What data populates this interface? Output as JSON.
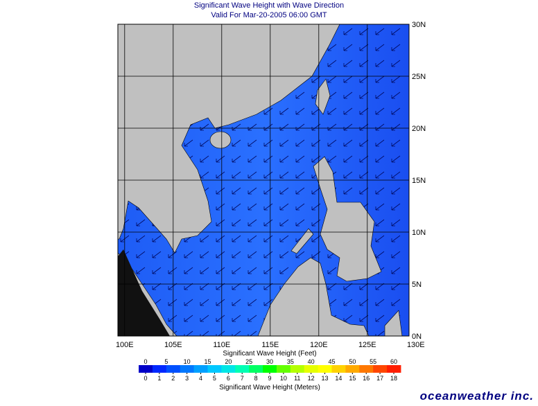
{
  "title": "Significant Wave Height with Wave Direction",
  "subtitle": "Valid For Mar-20-2005 06:00 GMT",
  "map": {
    "lon_range": [
      99.3,
      129.3
    ],
    "lat_range": [
      0,
      30
    ],
    "lon_ticks": [
      {
        "value": 100,
        "label": "100E"
      },
      {
        "value": 105,
        "label": "105E"
      },
      {
        "value": 110,
        "label": "110E"
      },
      {
        "value": 115,
        "label": "115E"
      },
      {
        "value": 120,
        "label": "120E"
      },
      {
        "value": 125,
        "label": "125E"
      },
      {
        "value": 130,
        "label": "130E"
      }
    ],
    "lat_ticks": [
      {
        "value": 0,
        "label": "0N"
      },
      {
        "value": 5,
        "label": "5N"
      },
      {
        "value": 10,
        "label": "10N"
      },
      {
        "value": 15,
        "label": "15N"
      },
      {
        "value": 20,
        "label": "20N"
      },
      {
        "value": 25,
        "label": "25N"
      },
      {
        "value": 30,
        "label": "30N"
      }
    ]
  },
  "colorbar": {
    "feet_title": "Significant Wave Height (Feet)",
    "meters_title": "Significant Wave Height (Meters)",
    "feet_range": [
      0,
      60
    ],
    "meters_range": [
      0,
      18
    ],
    "feet_ticks": [
      0,
      5,
      10,
      15,
      20,
      25,
      30,
      35,
      40,
      45,
      50,
      55,
      60
    ],
    "meter_ticks": [
      0,
      1,
      2,
      3,
      4,
      5,
      6,
      7,
      8,
      9,
      10,
      11,
      12,
      13,
      14,
      15,
      16,
      17,
      18
    ],
    "colors": [
      "#0000c8",
      "#0028ff",
      "#0050ff",
      "#0078ff",
      "#00a0ff",
      "#00c8ff",
      "#00e6e6",
      "#00ffb4",
      "#00ff64",
      "#00ff00",
      "#64ff00",
      "#b4ff00",
      "#e6ff00",
      "#ffff00",
      "#ffd200",
      "#ffaa00",
      "#ff7800",
      "#ff4600",
      "#ff1e00"
    ]
  },
  "logo": "oceanweather inc."
}
